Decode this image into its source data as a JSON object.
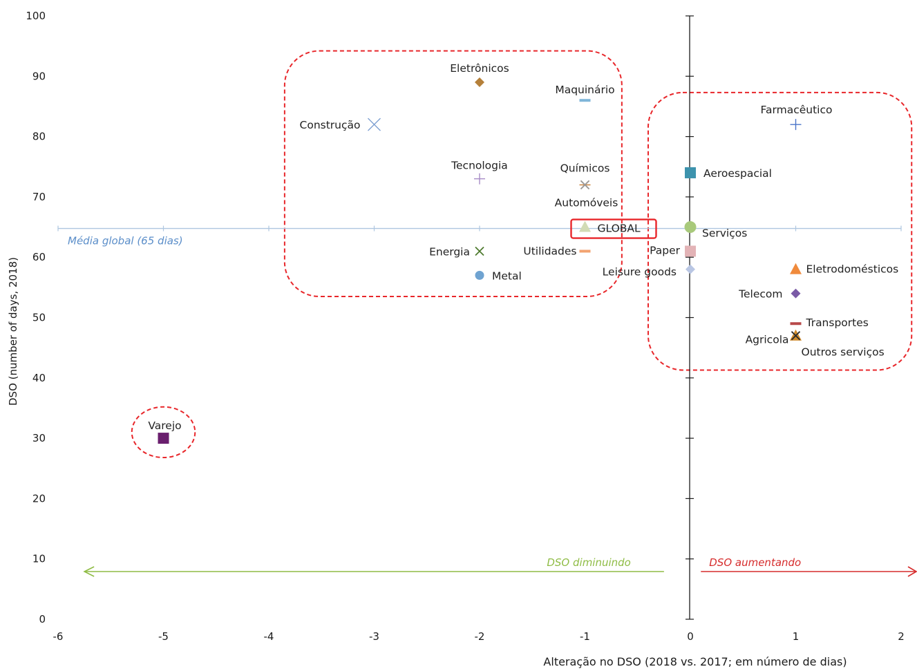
{
  "chart_data": {
    "type": "scatter",
    "xlabel": "Alteração no DSO (2018 vs. 2017; em número de dias)",
    "ylabel": "DSO (number of days, 2018)",
    "xlim": [
      -6,
      2
    ],
    "ylim": [
      0,
      100
    ],
    "x_ticks": [
      "-6",
      "-5",
      "-4",
      "-3",
      "-2",
      "-1",
      "0",
      "1",
      "2"
    ],
    "y_ticks": [
      "0",
      "10",
      "20",
      "30",
      "40",
      "50",
      "60",
      "70",
      "80",
      "90",
      "100"
    ],
    "grid": false,
    "average_line": {
      "y": 65,
      "label": "Média global (65 dias)",
      "color": "#aec6e0",
      "label_color": "#5b8ec9"
    },
    "arrows": {
      "decreasing": {
        "label": "DSO diminuindo",
        "color": "#8fbc45",
        "from_x": -0.25,
        "to_x": -5.75,
        "y": 8
      },
      "increasing": {
        "label": "DSO aumentando",
        "color": "#d62c2c",
        "from_x": 0.1,
        "to_x": 2.2,
        "y": 8
      }
    },
    "highlight_regions": [
      {
        "x": [
          -3.85,
          -0.65
        ],
        "y": [
          53.5,
          94.2
        ]
      },
      {
        "x": [
          -0.4,
          2.1
        ],
        "y": [
          41.3,
          87.3
        ]
      },
      {
        "center": [
          -5,
          31
        ],
        "radius": [
          0.3,
          4.2
        ]
      }
    ],
    "points": [
      {
        "name": "Eletrônicos",
        "x": -2,
        "y": 89,
        "marker": "diamond",
        "color": "#b5803a"
      },
      {
        "name": "Maquinário",
        "x": -1,
        "y": 86,
        "marker": "dash",
        "color": "#7fb6d9"
      },
      {
        "name": "Construção",
        "x": -3,
        "y": 82,
        "marker": "x",
        "color": "#7b9ed1"
      },
      {
        "name": "Tecnologia",
        "x": -2,
        "y": 73,
        "marker": "plus",
        "color": "#a78bc6"
      },
      {
        "name": "Químicos",
        "x": -1,
        "y": 72,
        "marker": "star",
        "color": "#c9813a"
      },
      {
        "name": "Automóveis",
        "x": -1,
        "y": 72,
        "marker": "x",
        "color": "#9a9a9a"
      },
      {
        "name": "GLOBAL",
        "x": -1,
        "y": 65,
        "marker": "triangle",
        "color": "#d2dbb5",
        "boxed": true
      },
      {
        "name": "Energia",
        "x": -2,
        "y": 61,
        "marker": "x",
        "color": "#4e7a2e"
      },
      {
        "name": "Utilidades",
        "x": -1,
        "y": 61,
        "marker": "dash",
        "color": "#f2a371"
      },
      {
        "name": "Metal",
        "x": -2,
        "y": 57,
        "marker": "circle",
        "color": "#6fa3d1"
      },
      {
        "name": "Farmacêutico",
        "x": 1,
        "y": 82,
        "marker": "plus",
        "color": "#4a74c9"
      },
      {
        "name": "Aeroespacial",
        "x": 0,
        "y": 74,
        "marker": "square",
        "color": "#3d93ad"
      },
      {
        "name": "Serviços",
        "x": 0,
        "y": 65,
        "marker": "circle",
        "color": "#a8c97b"
      },
      {
        "name": "Paper",
        "x": 0,
        "y": 61,
        "marker": "square",
        "color": "#e3b3b6"
      },
      {
        "name": "Leisure goods",
        "x": 0,
        "y": 58,
        "marker": "diamond",
        "color": "#b9c6e3"
      },
      {
        "name": "Eletrodomésticos",
        "x": 1,
        "y": 58,
        "marker": "triangle",
        "color": "#f08a3c"
      },
      {
        "name": "Telecom",
        "x": 1,
        "y": 54,
        "marker": "diamond",
        "color": "#7a5aa6"
      },
      {
        "name": "Transportes",
        "x": 1,
        "y": 49,
        "marker": "dash",
        "color": "#b84a4a"
      },
      {
        "name": "Agricola",
        "x": 1,
        "y": 47,
        "marker": "triangle",
        "color": "#d08a2a"
      },
      {
        "name": "Outros serviços",
        "x": 1,
        "y": 47,
        "marker": "x",
        "color": "#2b2b2b"
      },
      {
        "name": "Varejo",
        "x": -5,
        "y": 30,
        "marker": "square",
        "color": "#6a1f6e"
      }
    ]
  }
}
